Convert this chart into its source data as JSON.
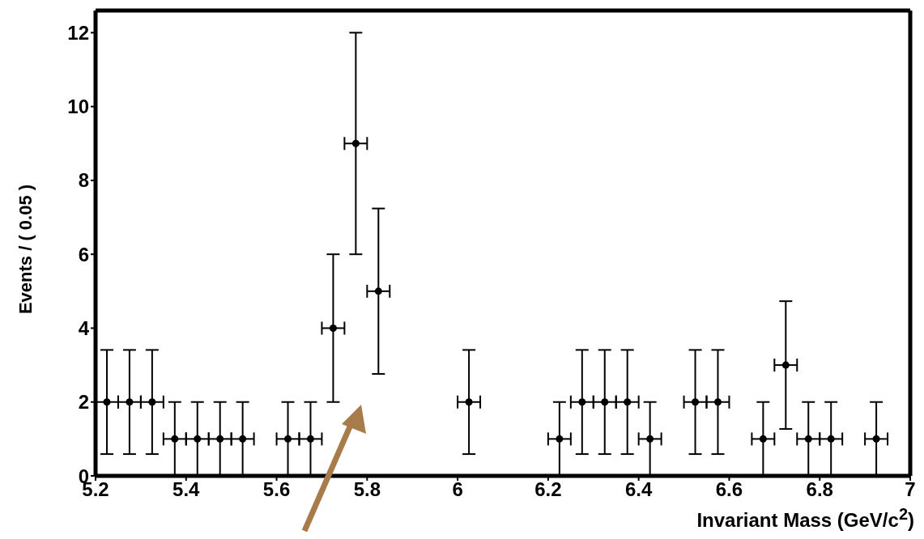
{
  "chart_data": {
    "type": "scatter",
    "xlabel": "Invariant Mass (GeV/c$^{2}$)",
    "ylabel": "Events / ( 0.05 )",
    "x": [
      5.225,
      5.275,
      5.325,
      5.375,
      5.425,
      5.475,
      5.525,
      5.625,
      5.675,
      5.725,
      5.775,
      5.825,
      6.025,
      6.225,
      6.275,
      6.325,
      6.375,
      6.425,
      6.525,
      6.575,
      6.675,
      6.725,
      6.775,
      6.825,
      6.925
    ],
    "values": [
      2,
      2,
      2,
      1,
      1,
      1,
      1,
      1,
      1,
      4,
      9,
      5,
      2,
      1,
      2,
      2,
      2,
      1,
      2,
      2,
      1,
      3,
      1,
      1,
      1
    ],
    "errors": [
      1.41,
      1.41,
      1.41,
      1,
      1,
      1,
      1,
      1,
      1,
      2,
      3,
      2.24,
      1.41,
      1,
      1.41,
      1.41,
      1.41,
      1,
      1.41,
      1.41,
      1,
      1.73,
      1,
      1,
      1
    ],
    "xerrors": [
      0.025,
      0.025,
      0.025,
      0.025,
      0.025,
      0.025,
      0.025,
      0.025,
      0.025,
      0.025,
      0.025,
      0.025,
      0.025,
      0.025,
      0.025,
      0.025,
      0.025,
      0.025,
      0.025,
      0.025,
      0.025,
      0.025,
      0.025,
      0.025,
      0.025
    ],
    "color": "#000000",
    "marker": "circle",
    "xlim": [
      5.2,
      7
    ],
    "ylim": [
      0,
      12.6
    ],
    "xticks": [
      5.2,
      5.4,
      5.6,
      5.8,
      6,
      6.2,
      6.4,
      6.6,
      6.8,
      7
    ],
    "yticks": [
      0,
      2,
      4,
      6,
      8,
      10,
      12
    ]
  }
}
